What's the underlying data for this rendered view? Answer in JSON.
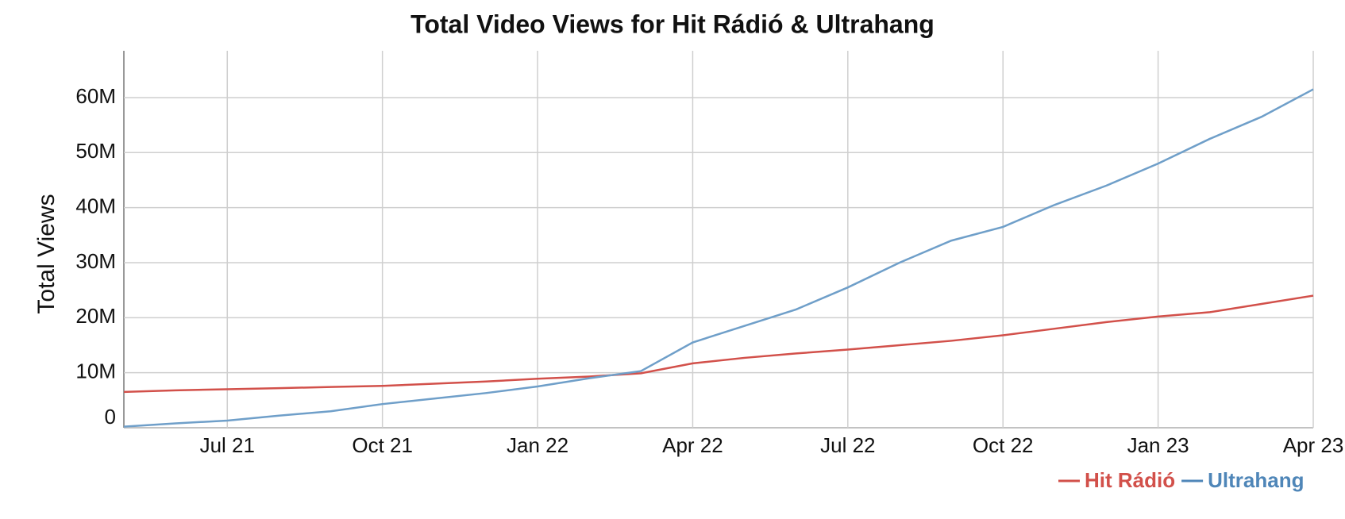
{
  "chart_data": {
    "type": "line",
    "title": "Total Video Views for Hit Rádió & Ultrahang",
    "y_label": "Total Views",
    "x": [
      "2021-05",
      "2021-06",
      "2021-07",
      "2021-08",
      "2021-09",
      "2021-10",
      "2021-11",
      "2021-12",
      "2022-01",
      "2022-02",
      "2022-03",
      "2022-04",
      "2022-05",
      "2022-06",
      "2022-07",
      "2022-08",
      "2022-09",
      "2022-10",
      "2022-11",
      "2022-12",
      "2023-01",
      "2023-02",
      "2023-03",
      "2023-04"
    ],
    "series": [
      {
        "name": "Hit Rádió",
        "color": "#d2504a",
        "values": [
          6500000,
          6800000,
          7000000,
          7200000,
          7400000,
          7600000,
          8000000,
          8400000,
          8900000,
          9300000,
          9900000,
          11700000,
          12700000,
          13500000,
          14200000,
          15000000,
          15800000,
          16800000,
          18000000,
          19200000,
          20200000,
          21000000,
          22500000,
          24000000
        ]
      },
      {
        "name": "Ultrahang",
        "color": "#6f9fc9",
        "values": [
          200000,
          800000,
          1300000,
          2200000,
          3000000,
          4300000,
          5300000,
          6300000,
          7500000,
          9000000,
          10300000,
          15500000,
          18500000,
          21500000,
          25500000,
          30000000,
          34000000,
          36500000,
          40500000,
          44000000,
          48000000,
          52500000,
          56500000,
          61500000
        ]
      }
    ],
    "xlim": [
      "2021-05",
      "2023-04"
    ],
    "xticks": [
      {
        "value": "2021-07",
        "label": "Jul 21"
      },
      {
        "value": "2021-10",
        "label": "Oct 21"
      },
      {
        "value": "2022-01",
        "label": "Jan 22"
      },
      {
        "value": "2022-04",
        "label": "Apr 22"
      },
      {
        "value": "2022-07",
        "label": "Jul 22"
      },
      {
        "value": "2022-10",
        "label": "Oct 22"
      },
      {
        "value": "2023-01",
        "label": "Jan 23"
      },
      {
        "value": "2023-04",
        "label": "Apr 23"
      }
    ],
    "ylim": [
      0,
      68500000
    ],
    "yticks": [
      0,
      {
        "value": 10000000,
        "label": "10M"
      },
      {
        "value": 20000000,
        "label": "20M"
      },
      {
        "value": 30000000,
        "label": "30M"
      },
      {
        "value": 40000000,
        "label": "40M"
      },
      {
        "value": 50000000,
        "label": "50M"
      },
      {
        "value": 60000000,
        "label": "60M"
      }
    ],
    "grid": true
  }
}
